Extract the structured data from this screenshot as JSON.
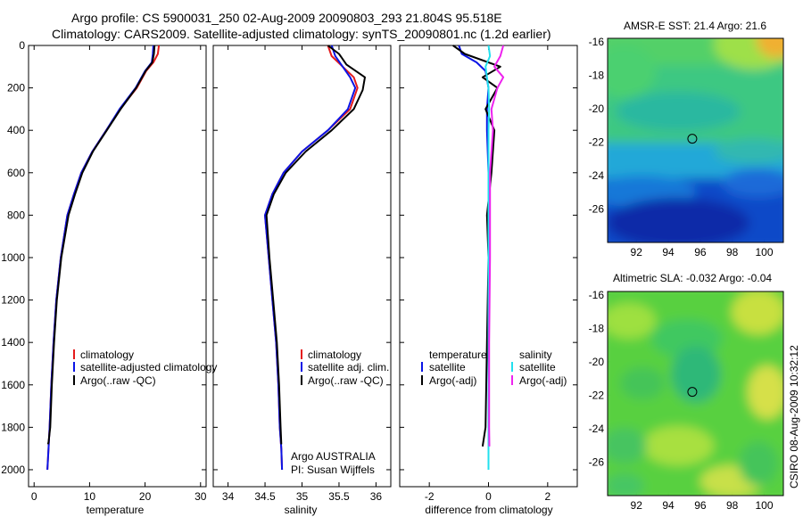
{
  "header": {
    "title_line1": "Argo profile: CS 5900031_250 02-Aug-2009 20090803_293 21.804S 95.518E",
    "title_line2": "Climatology: CARS2009. Satellite-adjusted climatology: synTS_20090801.nc (1.2d earlier)"
  },
  "side_label": "CSIRO 08-Aug-2009 10:32:12",
  "colors": {
    "climatology": "#e41a1c",
    "satellite": "#0a14e6",
    "argo": "#000000",
    "sat_salinity": "#22e0ee",
    "argo_salinity": "#ee22ee"
  },
  "chart_data": [
    {
      "type": "line",
      "xlabel": "temperature",
      "xlim": [
        -1,
        31
      ],
      "ylim": [
        0,
        2080
      ],
      "y_reversed": true,
      "xticks": [
        0,
        10,
        20,
        30
      ],
      "yticks": [
        0,
        200,
        400,
        600,
        800,
        1000,
        1200,
        1400,
        1600,
        1800,
        2000
      ],
      "legend": [
        "climatology",
        "satellite-adjusted climatology",
        "Argo(..raw -QC)"
      ],
      "series": [
        {
          "name": "climatology",
          "color": "#e41a1c",
          "x": [
            22.5,
            22.3,
            21.5,
            20.2,
            18.5,
            15.5,
            13.0,
            10.5,
            8.5,
            7.2,
            6.0,
            4.8,
            4.0,
            3.5,
            3.1,
            2.8,
            2.6,
            2.4
          ],
          "y": [
            0,
            40,
            80,
            120,
            200,
            300,
            400,
            500,
            600,
            700,
            800,
            1000,
            1200,
            1400,
            1600,
            1800,
            1900,
            2000
          ]
        },
        {
          "name": "satellite-adjusted climatology",
          "color": "#0a14e6",
          "x": [
            21.5,
            21.4,
            21.2,
            20.0,
            18.3,
            15.4,
            13.0,
            10.5,
            8.5,
            7.2,
            6.0,
            4.8,
            4.0,
            3.5,
            3.1,
            2.8,
            2.6,
            2.4
          ],
          "y": [
            0,
            40,
            80,
            120,
            200,
            300,
            400,
            500,
            600,
            700,
            800,
            1000,
            1200,
            1400,
            1600,
            1800,
            1900,
            2000
          ]
        },
        {
          "name": "Argo(..raw -QC)",
          "color": "#000000",
          "x": [
            21.7,
            21.6,
            21.3,
            20.1,
            18.4,
            15.6,
            13.1,
            10.6,
            8.7,
            7.4,
            6.2,
            4.9,
            4.1,
            3.6,
            3.2,
            2.9,
            2.6,
            2.5
          ],
          "y": [
            0,
            40,
            80,
            120,
            200,
            300,
            400,
            500,
            600,
            700,
            800,
            1000,
            1200,
            1400,
            1600,
            1800,
            1870,
            1880
          ]
        }
      ]
    },
    {
      "type": "line",
      "xlabel": "salinity",
      "xlim": [
        33.8,
        36.2
      ],
      "ylim": [
        0,
        2080
      ],
      "y_reversed": true,
      "xticks": [
        34,
        34.5,
        35,
        35.5,
        36
      ],
      "legend": [
        "climatology",
        "satellite adj. clim.",
        "Argo(..raw -QC)"
      ],
      "annotation": [
        "Argo AUSTRALIA",
        "PI: Susan Wijffels"
      ],
      "series": [
        {
          "name": "climatology",
          "color": "#e41a1c",
          "x": [
            35.35,
            35.4,
            35.55,
            35.7,
            35.75,
            35.65,
            35.35,
            35.0,
            34.75,
            34.6,
            34.5,
            34.55,
            34.6,
            34.65,
            34.68,
            34.7,
            34.72,
            34.73
          ],
          "y": [
            0,
            50,
            100,
            150,
            200,
            300,
            400,
            500,
            600,
            700,
            800,
            1000,
            1200,
            1400,
            1600,
            1800,
            1900,
            2000
          ]
        },
        {
          "name": "satellite adj. clim.",
          "color": "#0a14e6",
          "x": [
            35.4,
            35.45,
            35.55,
            35.65,
            35.72,
            35.62,
            35.35,
            35.0,
            34.75,
            34.6,
            34.5,
            34.55,
            34.6,
            34.65,
            34.68,
            34.7,
            34.72,
            34.73
          ],
          "y": [
            0,
            50,
            100,
            150,
            200,
            300,
            400,
            500,
            600,
            700,
            800,
            1000,
            1200,
            1400,
            1600,
            1800,
            1900,
            2000
          ]
        },
        {
          "name": "Argo(..raw -QC)",
          "color": "#000000",
          "x": [
            35.35,
            35.5,
            35.6,
            35.85,
            35.82,
            35.7,
            35.4,
            35.05,
            34.78,
            34.62,
            34.52,
            34.56,
            34.61,
            34.66,
            34.69,
            34.71,
            34.72
          ],
          "y": [
            0,
            40,
            90,
            150,
            210,
            300,
            400,
            500,
            600,
            700,
            800,
            1000,
            1200,
            1400,
            1600,
            1800,
            1880
          ]
        }
      ]
    },
    {
      "type": "line",
      "xlabel": "difference from climatology",
      "xlim": [
        -3,
        3
      ],
      "ylim": [
        0,
        2080
      ],
      "y_reversed": true,
      "xticks": [
        -2,
        0,
        2
      ],
      "legend_left": [
        "temperature",
        "satellite",
        "Argo(-adj)"
      ],
      "legend_right": [
        "salinity",
        "satellite",
        "Argo(-adj)"
      ],
      "series": [
        {
          "name": "satellite",
          "color": "#0a14e6",
          "x": [
            -1.0,
            -0.9,
            -0.4,
            -0.1,
            0.0,
            -0.05,
            -0.05,
            0.0,
            0.0,
            0.0,
            0.0,
            0.0,
            0.0
          ],
          "y": [
            0,
            40,
            80,
            120,
            200,
            300,
            400,
            600,
            800,
            1000,
            1400,
            1800,
            2000
          ]
        },
        {
          "name": "Argo(-adj)",
          "color": "#000000",
          "x": [
            -1.2,
            -0.8,
            0.4,
            -0.2,
            0.3,
            -0.1,
            0.2,
            0.1,
            -0.05,
            0.0,
            -0.05,
            -0.1,
            -0.2
          ],
          "y": [
            0,
            40,
            100,
            150,
            200,
            300,
            400,
            600,
            800,
            1000,
            1400,
            1800,
            1890
          ]
        },
        {
          "name": "satellite",
          "color": "#22e0ee",
          "x": [
            0.0,
            0.05,
            -0.1,
            -0.05,
            0.0,
            0.02,
            0.0,
            0.0,
            0.0,
            0.0,
            0.0,
            0.0
          ],
          "y": [
            0,
            50,
            100,
            150,
            200,
            300,
            400,
            600,
            1000,
            1400,
            1800,
            2000
          ]
        },
        {
          "name": "Argo(-adj)",
          "color": "#ee22ee",
          "x": [
            0.5,
            0.4,
            0.2,
            0.5,
            0.3,
            0.1,
            0.15,
            0.05,
            0.05,
            0.02,
            0.02,
            0.03
          ],
          "y": [
            0,
            50,
            100,
            150,
            200,
            300,
            400,
            600,
            1000,
            1400,
            1800,
            1890
          ]
        }
      ]
    },
    {
      "type": "heatmap",
      "title": "AMSR-E SST: 21.4 Argo: 21.6",
      "xlim": [
        90.2,
        101.2
      ],
      "ylim": [
        -28,
        -15.8
      ],
      "xticks": [
        92,
        94,
        96,
        98,
        100
      ],
      "yticks": [
        -16,
        -18,
        -20,
        -22,
        -24,
        -26
      ],
      "marker": {
        "lon": 95.5,
        "lat": -21.8
      }
    },
    {
      "type": "heatmap",
      "title": "Altimetric SLA: -0.032 Argo: -0.04",
      "xlim": [
        90.2,
        101.2
      ],
      "ylim": [
        -28,
        -15.8
      ],
      "xticks": [
        92,
        94,
        96,
        98,
        100
      ],
      "yticks": [
        -16,
        -18,
        -20,
        -22,
        -24,
        -26
      ],
      "marker": {
        "lon": 95.5,
        "lat": -21.8
      }
    }
  ]
}
